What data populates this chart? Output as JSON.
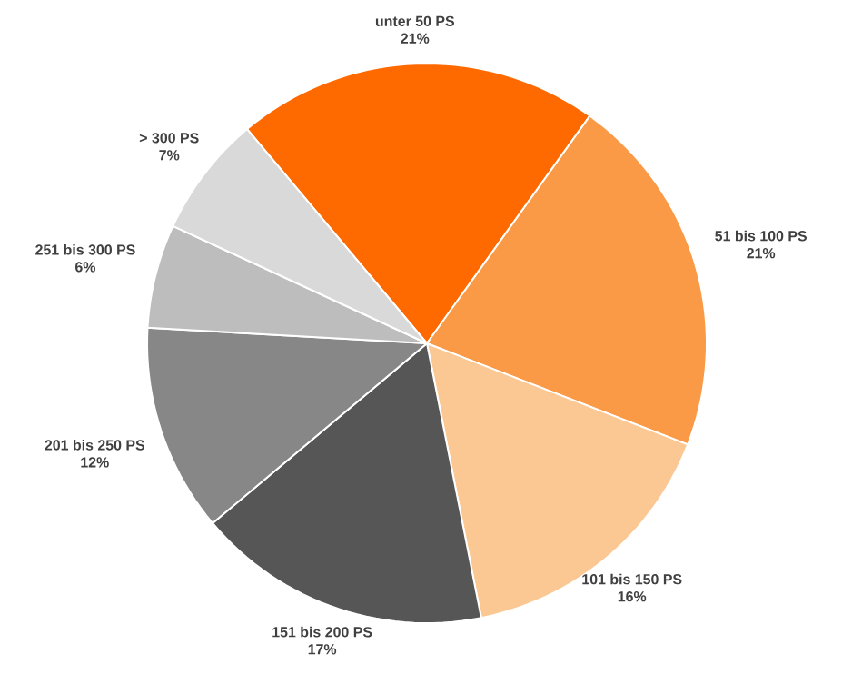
{
  "chart_data": {
    "type": "pie",
    "categories": [
      "unter 50 PS",
      "51 bis 100 PS",
      "101 bis 150 PS",
      "151 bis 200 PS",
      "201 bis 250 PS",
      "251 bis 300 PS",
      "> 300 PS"
    ],
    "values": [
      21,
      21,
      16,
      17,
      12,
      6,
      7
    ],
    "colors": [
      "#ff6a00",
      "#fb9a46",
      "#fbc894",
      "#565656",
      "#878787",
      "#bdbdbd",
      "#d9d9d9"
    ],
    "value_labels": [
      "21%",
      "21%",
      "16%",
      "17%",
      "12%",
      "6%",
      "7%"
    ]
  }
}
